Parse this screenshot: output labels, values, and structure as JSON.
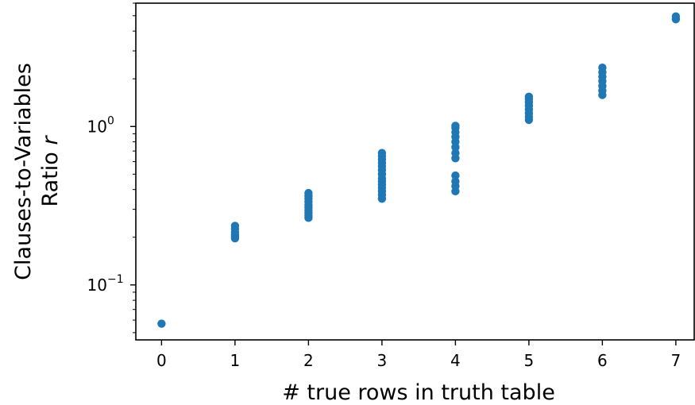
{
  "chart_data": {
    "type": "scatter",
    "xlabel": "# true rows in truth table",
    "ylabel_line1": "Clauses-to-Variables",
    "ylabel_line2_text": "Ratio ",
    "ylabel_line2_var": "r",
    "x_ticks": [
      "0",
      "1",
      "2",
      "3",
      "4",
      "5",
      "6",
      "7"
    ],
    "y_ticks": [
      {
        "base": "10",
        "exp": "0",
        "value": 1.0
      },
      {
        "base": "10",
        "exp": "−1",
        "value": 0.1
      }
    ],
    "yscale": "log",
    "xlim": [
      -0.35,
      7.25
    ],
    "ylim": [
      0.045,
      6.0
    ],
    "grid": false,
    "marker_color": "#1f77b4",
    "series": [
      {
        "points": [
          [
            0,
            0.057
          ],
          [
            1,
            0.197
          ],
          [
            1,
            0.202
          ],
          [
            1,
            0.207
          ],
          [
            1,
            0.215
          ],
          [
            1,
            0.226
          ],
          [
            1,
            0.236
          ],
          [
            2,
            0.265
          ],
          [
            2,
            0.275
          ],
          [
            2,
            0.285
          ],
          [
            2,
            0.295
          ],
          [
            2,
            0.308
          ],
          [
            2,
            0.32
          ],
          [
            2,
            0.335
          ],
          [
            2,
            0.35
          ],
          [
            2,
            0.365
          ],
          [
            2,
            0.38
          ],
          [
            3,
            0.35
          ],
          [
            3,
            0.37
          ],
          [
            3,
            0.39
          ],
          [
            3,
            0.41
          ],
          [
            3,
            0.43
          ],
          [
            3,
            0.45
          ],
          [
            3,
            0.47
          ],
          [
            3,
            0.5
          ],
          [
            3,
            0.53
          ],
          [
            3,
            0.56
          ],
          [
            3,
            0.59
          ],
          [
            3,
            0.62
          ],
          [
            3,
            0.65
          ],
          [
            3,
            0.68
          ],
          [
            4,
            0.39
          ],
          [
            4,
            0.42
          ],
          [
            4,
            0.45
          ],
          [
            4,
            0.49
          ],
          [
            4,
            0.63
          ],
          [
            4,
            0.68
          ],
          [
            4,
            0.74
          ],
          [
            4,
            0.8
          ],
          [
            4,
            0.86
          ],
          [
            4,
            0.92
          ],
          [
            4,
            0.98
          ],
          [
            4,
            1.01
          ],
          [
            5,
            1.1
          ],
          [
            5,
            1.15
          ],
          [
            5,
            1.21
          ],
          [
            5,
            1.28
          ],
          [
            5,
            1.35
          ],
          [
            5,
            1.42
          ],
          [
            5,
            1.49
          ],
          [
            5,
            1.54
          ],
          [
            6,
            1.58
          ],
          [
            6,
            1.68
          ],
          [
            6,
            1.8
          ],
          [
            6,
            1.93
          ],
          [
            6,
            2.06
          ],
          [
            6,
            2.2
          ],
          [
            6,
            2.35
          ],
          [
            7,
            4.75
          ],
          [
            7,
            4.95
          ]
        ]
      }
    ]
  }
}
